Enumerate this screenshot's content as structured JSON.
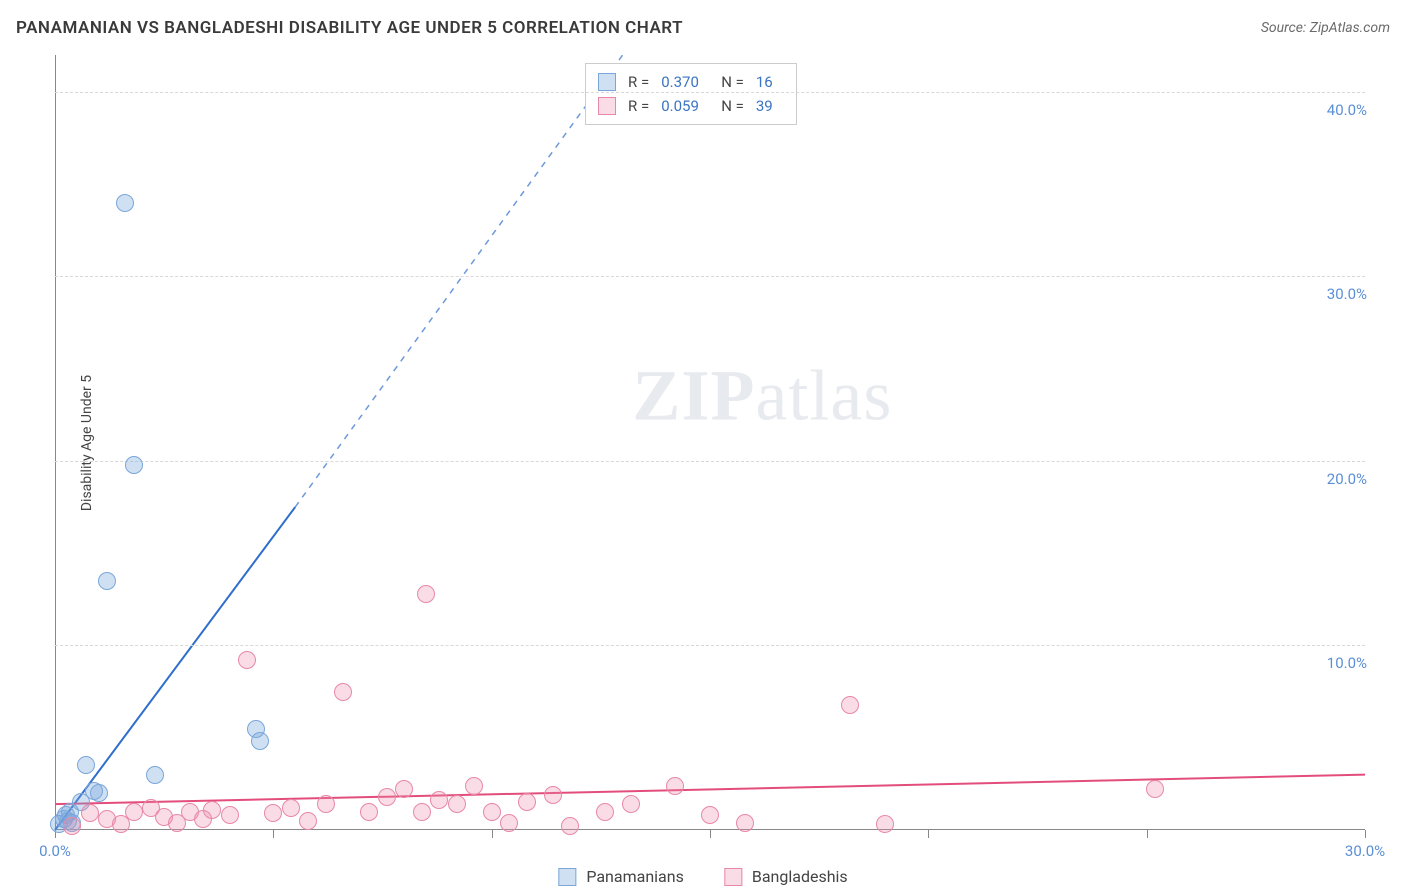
{
  "header": {
    "title": "PANAMANIAN VS BANGLADESHI DISABILITY AGE UNDER 5 CORRELATION CHART",
    "source_prefix": "Source: ",
    "source": "ZipAtlas.com"
  },
  "watermark": {
    "zip": "ZIP",
    "atlas": "atlas"
  },
  "chart": {
    "type": "scatter",
    "y_label": "Disability Age Under 5",
    "background_color": "#ffffff",
    "grid_color": "#d8d8d8",
    "axis_color": "#888888",
    "tick_label_color": "#5b8fd6",
    "xlim": [
      0,
      30
    ],
    "ylim": [
      0,
      42
    ],
    "x_ticks": [
      0,
      5,
      10,
      15,
      20,
      25,
      30
    ],
    "x_tick_labels": {
      "0": "0.0%",
      "30": "30.0%"
    },
    "y_ticks": [
      10,
      20,
      30,
      40
    ],
    "y_tick_labels": {
      "10": "10.0%",
      "20": "20.0%",
      "30": "30.0%",
      "40": "40.0%"
    },
    "marker_radius": 9,
    "marker_border_width": 1.5,
    "line_width": 2,
    "series": [
      {
        "name": "Panamanians",
        "fill_color": "rgba(120,165,220,0.35)",
        "border_color": "#7aa6d9",
        "line_color": "#2f6ecc",
        "r_value": "0.370",
        "n_value": "16",
        "trend": {
          "x1": 0,
          "y1": 0,
          "x2": 5.5,
          "y2": 17.5,
          "dashed_to_x": 13.0,
          "dashed_to_y": 42
        },
        "points": [
          [
            0.1,
            0.3
          ],
          [
            0.2,
            0.6
          ],
          [
            0.25,
            0.8
          ],
          [
            0.3,
            0.5
          ],
          [
            0.35,
            1.0
          ],
          [
            0.4,
            0.4
          ],
          [
            0.6,
            1.5
          ],
          [
            0.7,
            3.5
          ],
          [
            0.9,
            2.1
          ],
          [
            1.0,
            2.0
          ],
          [
            1.2,
            13.5
          ],
          [
            1.6,
            34.0
          ],
          [
            1.8,
            19.8
          ],
          [
            2.3,
            3.0
          ],
          [
            4.6,
            5.5
          ],
          [
            4.7,
            4.8
          ]
        ]
      },
      {
        "name": "Bangladeshis",
        "fill_color": "rgba(235,140,170,0.30)",
        "border_color": "#e888a8",
        "line_color": "#e34d7c",
        "r_value": "0.059",
        "n_value": "39",
        "trend": {
          "x1": 0,
          "y1": 1.4,
          "x2": 30,
          "y2": 3.0
        },
        "points": [
          [
            0.4,
            0.2
          ],
          [
            0.8,
            0.9
          ],
          [
            1.2,
            0.6
          ],
          [
            1.5,
            0.3
          ],
          [
            1.8,
            1.0
          ],
          [
            2.2,
            1.2
          ],
          [
            2.5,
            0.7
          ],
          [
            2.8,
            0.4
          ],
          [
            3.1,
            1.0
          ],
          [
            3.4,
            0.6
          ],
          [
            3.6,
            1.1
          ],
          [
            4.0,
            0.8
          ],
          [
            4.4,
            9.2
          ],
          [
            5.0,
            0.9
          ],
          [
            5.4,
            1.2
          ],
          [
            5.8,
            0.5
          ],
          [
            6.2,
            1.4
          ],
          [
            6.6,
            7.5
          ],
          [
            7.2,
            1.0
          ],
          [
            7.6,
            1.8
          ],
          [
            8.0,
            2.2
          ],
          [
            8.4,
            1.0
          ],
          [
            8.5,
            12.8
          ],
          [
            8.8,
            1.6
          ],
          [
            9.2,
            1.4
          ],
          [
            9.6,
            2.4
          ],
          [
            10.0,
            1.0
          ],
          [
            10.4,
            0.4
          ],
          [
            10.8,
            1.5
          ],
          [
            11.4,
            1.9
          ],
          [
            11.8,
            0.2
          ],
          [
            12.6,
            1.0
          ],
          [
            13.2,
            1.4
          ],
          [
            14.2,
            2.4
          ],
          [
            15.0,
            0.8
          ],
          [
            15.8,
            0.4
          ],
          [
            18.2,
            6.8
          ],
          [
            19.0,
            0.3
          ],
          [
            25.2,
            2.2
          ]
        ]
      }
    ]
  },
  "stats_legend": {
    "r_label": "R =",
    "n_label": "N ="
  },
  "bottom_legend": {
    "items": [
      "Panamanians",
      "Bangladeshis"
    ]
  }
}
